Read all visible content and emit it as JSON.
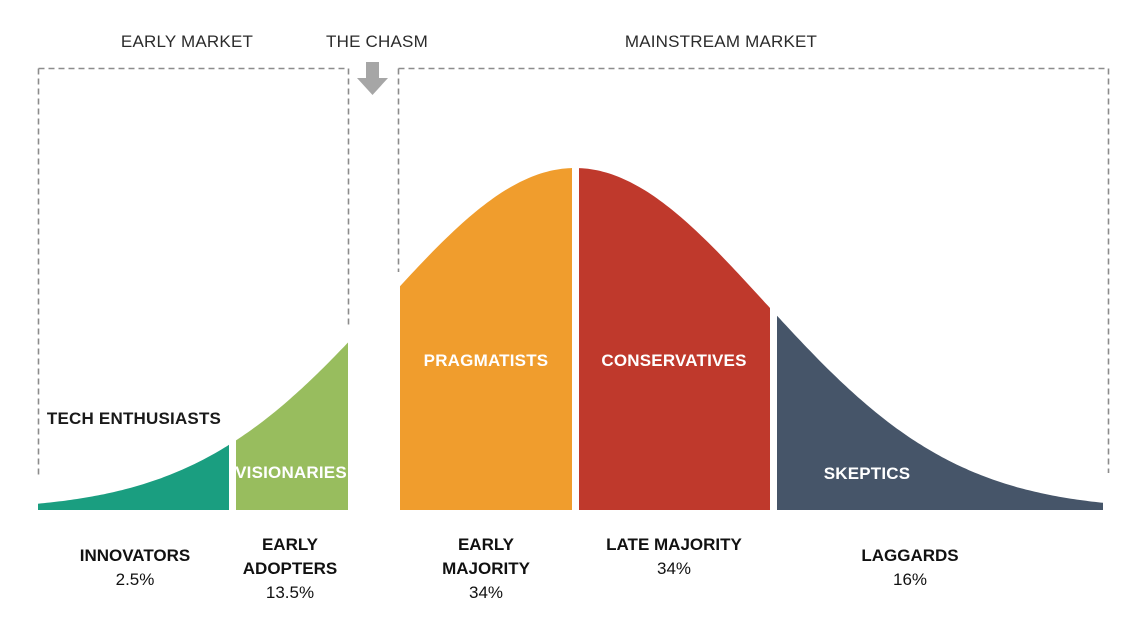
{
  "header": {
    "early_market_label": "EARLY MARKET",
    "chasm_label": "THE CHASM",
    "mainstream_market_label": "MAINSTREAM MARKET"
  },
  "colors": {
    "dashed_border": "#8c8c8c",
    "chasm_arrow": "#a6a6a6"
  },
  "segments": [
    {
      "name": "innovators",
      "curve_label": "TECH ENTHUSIASTS",
      "axis_label": "INNOVATORS",
      "percent": "2.5%",
      "color": "#1a9e80"
    },
    {
      "name": "early-adopters",
      "curve_label": "VISIONARIES",
      "axis_label": "EARLY ADOPTERS",
      "percent": "13.5%",
      "color": "#98bd5e"
    },
    {
      "name": "early-majority",
      "curve_label": "PRAGMATISTS",
      "axis_label": "EARLY MAJORITY",
      "percent": "34%",
      "color": "#f09d2d"
    },
    {
      "name": "late-majority",
      "curve_label": "CONSERVATIVES",
      "axis_label": "LATE MAJORITY",
      "percent": "34%",
      "color": "#bf392c"
    },
    {
      "name": "laggards",
      "curve_label": "SKEPTICS",
      "axis_label": "LAGGARDS",
      "percent": "16%",
      "color": "#465569"
    }
  ]
}
